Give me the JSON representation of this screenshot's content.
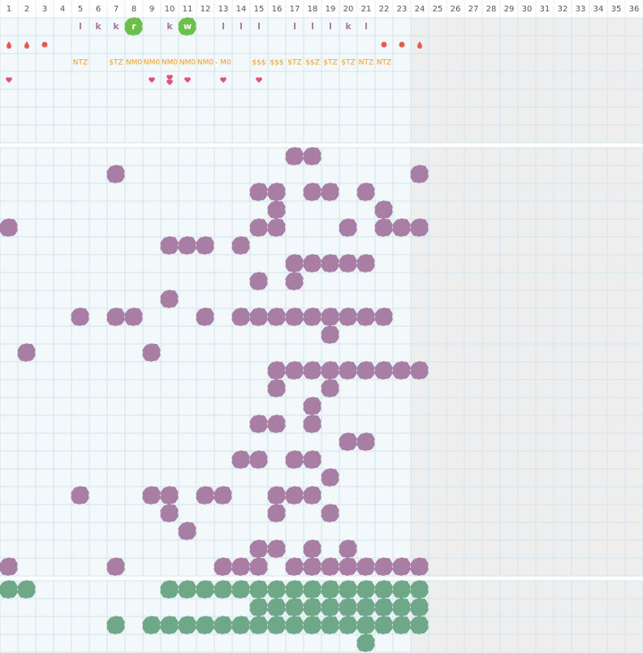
{
  "grid": {
    "columns": [
      1,
      2,
      3,
      4,
      5,
      6,
      7,
      8,
      9,
      10,
      11,
      12,
      13,
      14,
      15,
      16,
      17,
      18,
      19,
      20,
      21,
      22,
      23,
      24,
      25,
      26,
      27,
      28,
      29,
      30,
      31,
      32,
      33,
      34,
      35,
      36
    ],
    "top_rows": [
      [
        {
          "col": 5,
          "text": "l"
        },
        {
          "col": 6,
          "text": "k"
        },
        {
          "col": 7,
          "text": "k"
        },
        {
          "col": 8,
          "text": "r",
          "highlight": true
        },
        {
          "col": 10,
          "text": "k"
        },
        {
          "col": 11,
          "text": "w",
          "highlight": true
        },
        {
          "col": 13,
          "text": "l"
        },
        {
          "col": 14,
          "text": "l"
        },
        {
          "col": 15,
          "text": "l"
        },
        {
          "col": 17,
          "text": "l"
        },
        {
          "col": 18,
          "text": "l"
        },
        {
          "col": 19,
          "text": "l"
        },
        {
          "col": 20,
          "text": "k"
        },
        {
          "col": 21,
          "text": "l"
        }
      ],
      [
        {
          "col": 1,
          "icon": "drop"
        },
        {
          "col": 2,
          "icon": "drop"
        },
        {
          "col": 3,
          "icon": "dot"
        },
        {
          "col": 22,
          "icon": "dot"
        },
        {
          "col": 23,
          "icon": "dot"
        },
        {
          "col": 24,
          "icon": "drop"
        }
      ],
      [
        {
          "col": 5,
          "text": "NTZ"
        },
        {
          "col": 7,
          "text": "$TZ"
        },
        {
          "col": 8,
          "text": "NM0"
        },
        {
          "col": 9,
          "text": "NM0"
        },
        {
          "col": 10,
          "text": "NM0"
        },
        {
          "col": 11,
          "text": "NM0"
        },
        {
          "col": 12,
          "text": "NM0"
        },
        {
          "col": 13,
          "text": "- M0"
        },
        {
          "col": 15,
          "text": "$$$"
        },
        {
          "col": 16,
          "text": "$$$"
        },
        {
          "col": 17,
          "text": "$TZ"
        },
        {
          "col": 18,
          "text": "$$Z"
        },
        {
          "col": 19,
          "text": "$TZ"
        },
        {
          "col": 20,
          "text": "$TZ"
        },
        {
          "col": 21,
          "text": "NTZ"
        },
        {
          "col": 22,
          "text": "NTZ"
        }
      ],
      [
        {
          "col": 1,
          "icon": "heart"
        },
        {
          "col": 9,
          "icon": "heart"
        },
        {
          "col": 10,
          "icon": "double-heart"
        },
        {
          "col": 11,
          "icon": "heart"
        },
        {
          "col": 13,
          "icon": "heart"
        },
        {
          "col": 15,
          "icon": "heart"
        }
      ],
      [],
      [],
      []
    ],
    "middle_rows": [
      [
        17,
        18
      ],
      [
        7,
        24
      ],
      [
        15,
        16,
        18,
        19,
        21
      ],
      [
        16,
        22
      ],
      [
        1,
        15,
        16,
        20,
        22,
        23,
        24
      ],
      [
        10,
        11,
        12,
        14
      ],
      [
        17,
        18,
        19,
        20,
        21
      ],
      [
        15,
        17
      ],
      [
        10
      ],
      [
        5,
        7,
        8,
        12,
        14,
        15,
        16,
        17,
        18,
        19,
        20,
        21,
        22
      ],
      [
        19
      ],
      [
        2,
        9
      ],
      [
        16,
        17,
        18,
        19,
        20,
        21,
        22,
        23,
        24
      ],
      [
        16,
        19
      ],
      [
        18
      ],
      [
        15,
        16,
        18
      ],
      [
        20,
        21
      ],
      [
        14,
        15,
        17,
        18
      ],
      [
        19
      ],
      [
        5,
        9,
        10,
        12,
        13,
        16,
        17,
        18
      ],
      [
        10,
        16,
        19
      ],
      [
        11
      ],
      [
        15,
        16,
        18,
        20
      ],
      [
        1,
        7,
        13,
        14,
        15,
        17,
        18,
        19,
        20,
        21,
        22,
        23,
        24
      ]
    ],
    "bottom_rows": [
      [
        1,
        2,
        10,
        11,
        12,
        13,
        14,
        15,
        16,
        17,
        18,
        19,
        20,
        21,
        22,
        23,
        24
      ],
      [
        15,
        16,
        17,
        18,
        19,
        20,
        21,
        22,
        23,
        24
      ],
      [
        7,
        9,
        10,
        11,
        12,
        13,
        14,
        15,
        16,
        17,
        18,
        19,
        20,
        21,
        22,
        23,
        24
      ],
      [
        21
      ]
    ]
  }
}
